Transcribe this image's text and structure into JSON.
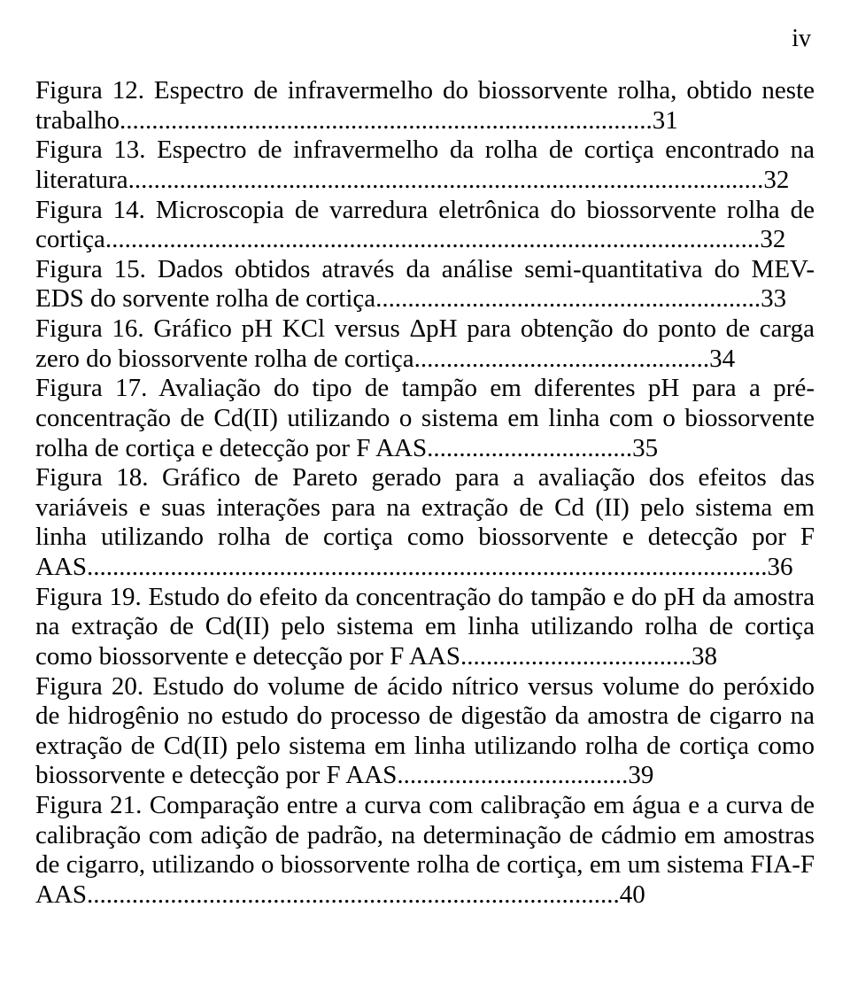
{
  "page": {
    "number_label": "iv"
  },
  "typography": {
    "font_family": "Times New Roman",
    "body_fontsize_pt": 22,
    "page_number_fontsize_pt": 22,
    "bold_weight": 700,
    "normal_weight": 400,
    "text_color": "#000000",
    "background_color": "#ffffff",
    "line_height": 1.16,
    "text_align": "justify"
  },
  "entries": [
    {
      "label": "Figura 12.",
      "text": " Espectro de infravermelho do biossorvente rolha, obtido neste trabalho...................................................................................",
      "page": "31"
    },
    {
      "label": "Figura 13.",
      "text": " Espectro de infravermelho da rolha de cortiça encontrado na literatura...................................................................................................",
      "page": "32"
    },
    {
      "label": "Figura 14.",
      "text": " Microscopia de varredura eletrônica do biossorvente rolha de cortiça......................................................................................................",
      "page": "32"
    },
    {
      "label": "Figura 15.",
      "text": " Dados obtidos através da análise semi-quantitativa do MEV-EDS do sorvente rolha de cortiça............................................................",
      "page": "33"
    },
    {
      "label": "Figura 16.",
      "text": " Gráfico pH KCl versus ΔpH para obtenção do ponto de carga zero do biossorvente rolha de cortiça..............................................",
      "page": "34"
    },
    {
      "label": "Figura 17.",
      "text": " Avaliação do tipo de tampão em diferentes pH para a pré-concentração de Cd(II) utilizando o sistema em linha com o biossorvente rolha de cortiça e detecção por F AAS................................",
      "page": "35"
    },
    {
      "label": "Figura 18.",
      "text": " Gráfico de Pareto gerado para a avaliação dos efeitos das variáveis e suas interações para na extração de Cd (II) pelo sistema em linha utilizando rolha de cortiça como biossorvente e detecção por F AAS..........................................................................................................",
      "page": "36"
    },
    {
      "label": "Figura 19.",
      "text": " Estudo do efeito da concentração do tampão e do pH da amostra na extração de Cd(II) pelo sistema em linha utilizando rolha de cortiça como biossorvente e detecção por F AAS....................................",
      "page": "38"
    },
    {
      "label": "Figura 20.",
      "text": " Estudo do volume de ácido nítrico versus volume do peróxido de hidrogênio no estudo do processo de digestão da amostra de cigarro na extração de Cd(II) pelo sistema em linha utilizando rolha de cortiça como biossorvente e detecção por F AAS....................................",
      "page": "39"
    },
    {
      "label": "Figura 21.",
      "text": " Comparação entre a curva com calibração em água e a curva de calibração com adição de padrão, na determinação de cádmio em amostras de cigarro, utilizando o biossorvente rolha de cortiça, em um sistema FIA-F AAS...................................................................................",
      "page": "40"
    }
  ]
}
